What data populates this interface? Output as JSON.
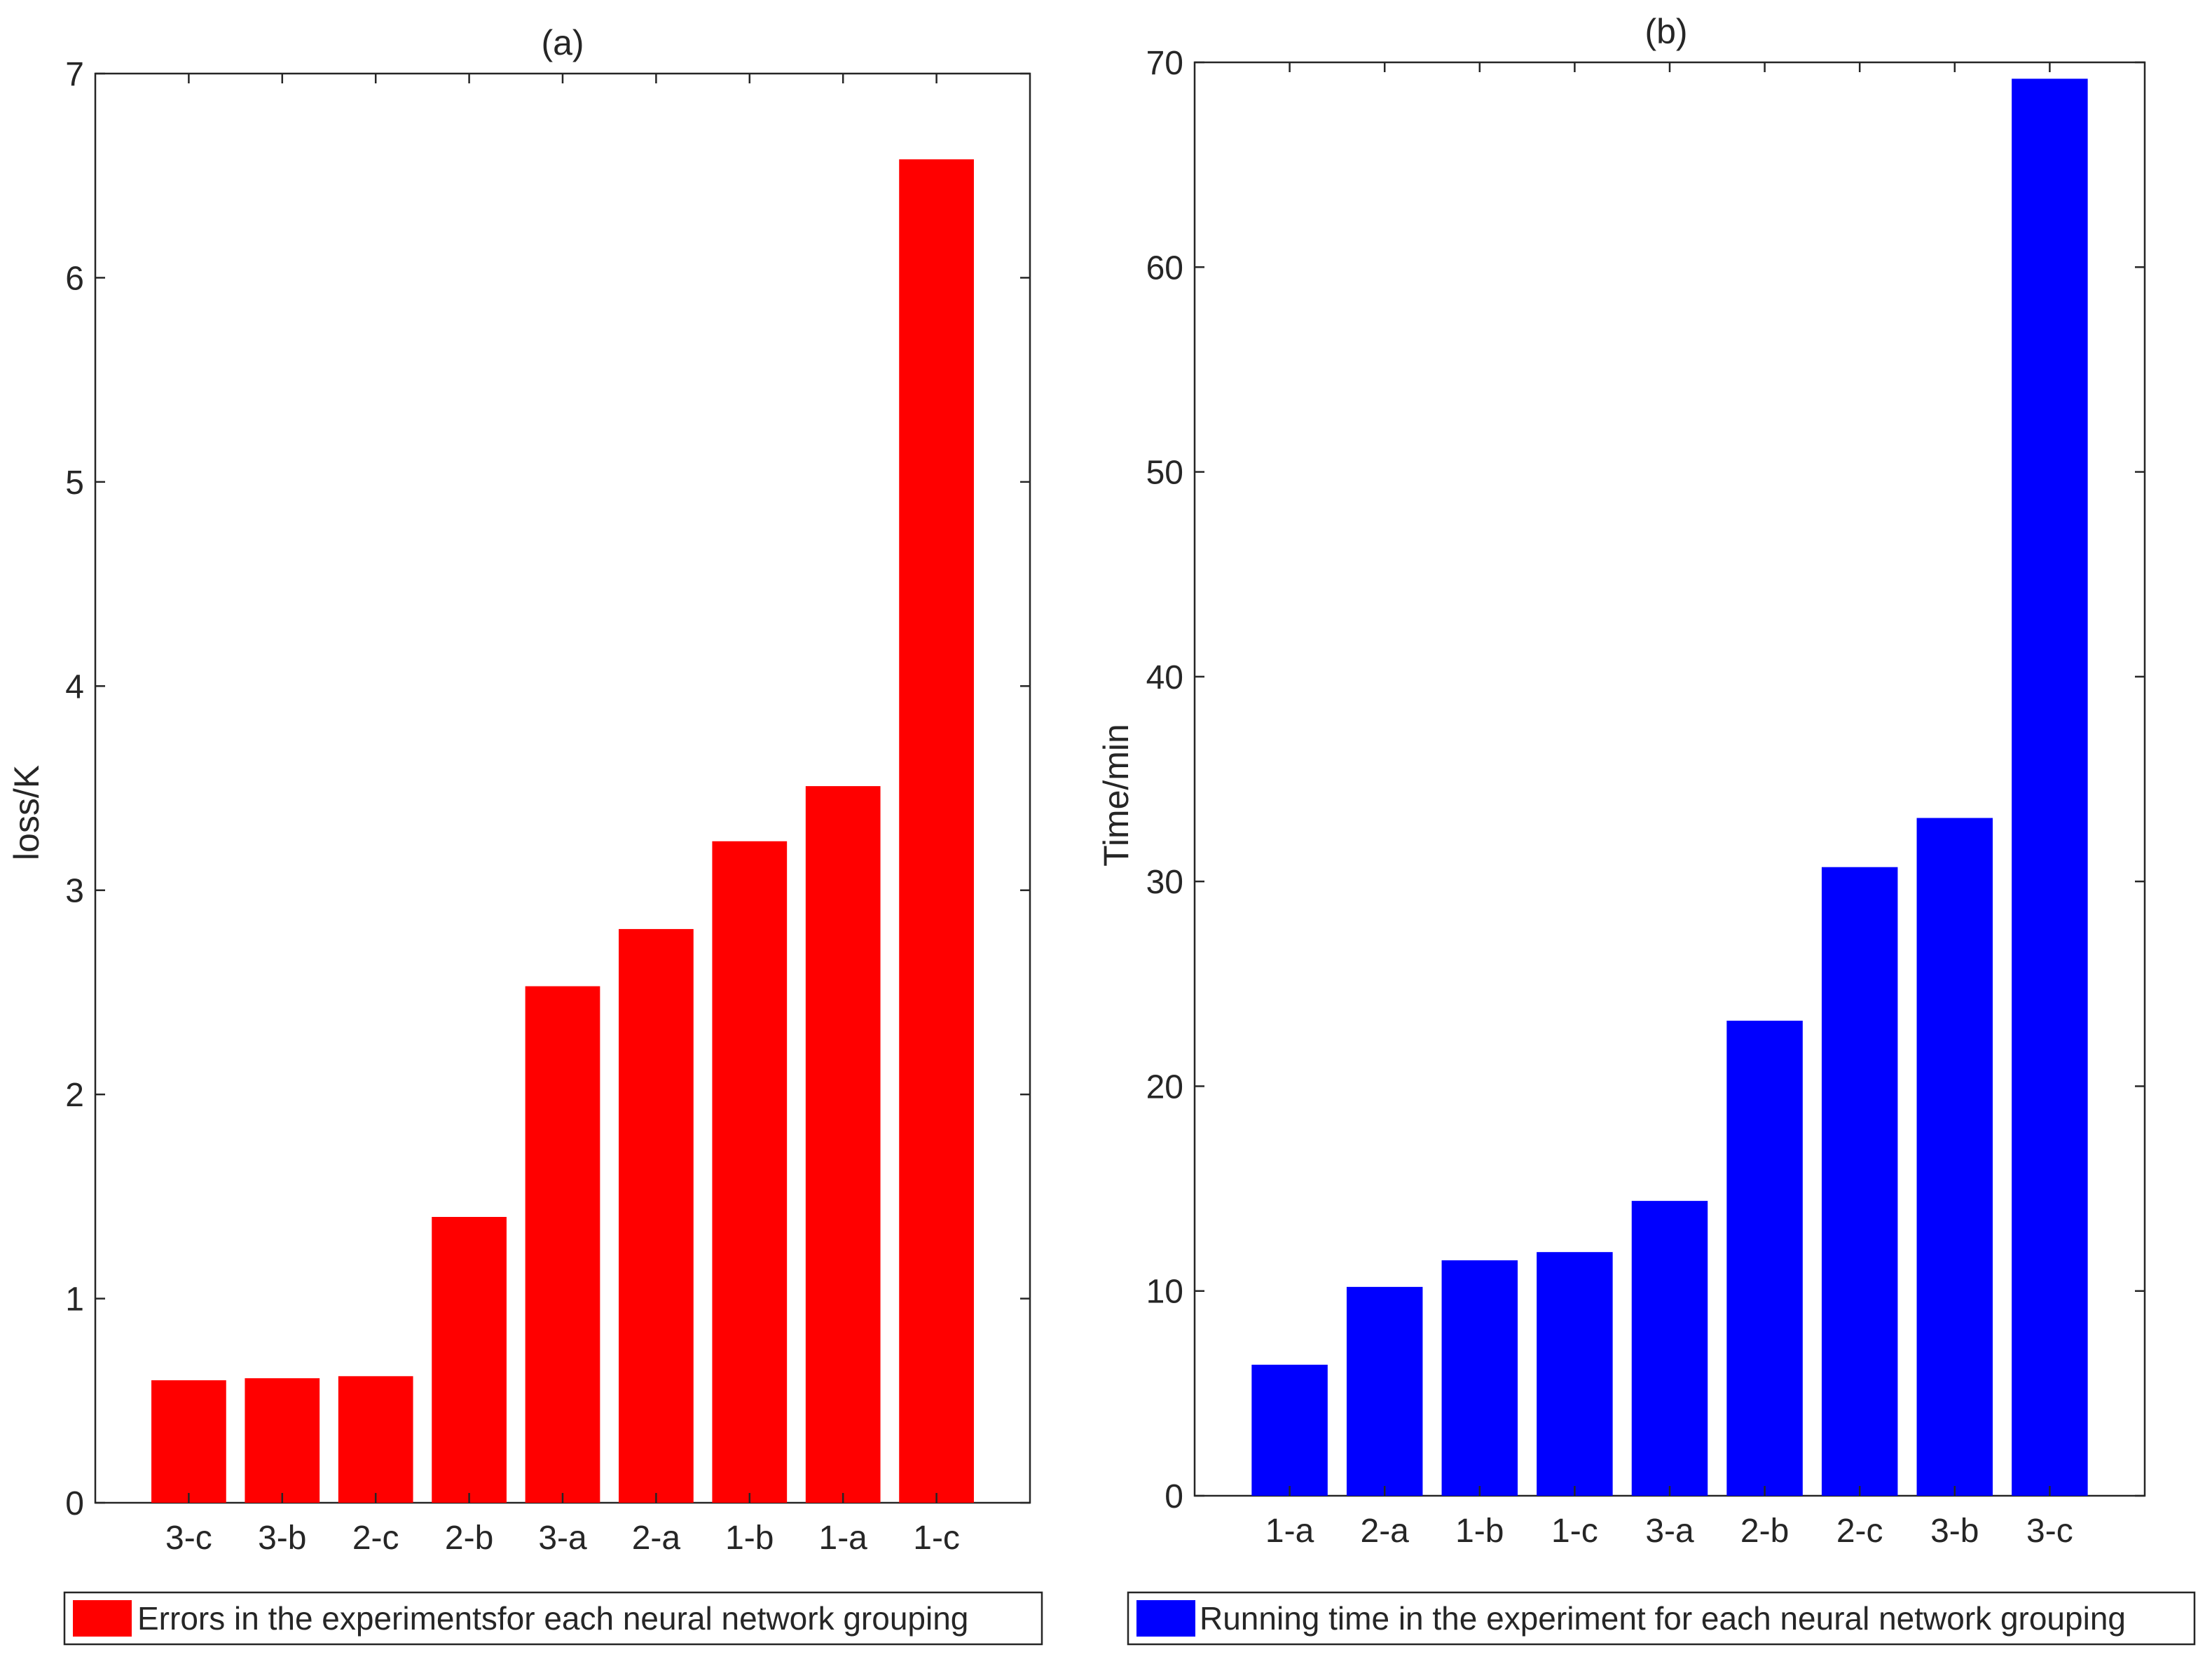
{
  "chart_data": [
    {
      "type": "bar",
      "title": "(a)",
      "xlabel": "",
      "ylabel": "loss/K",
      "categories": [
        "3-c",
        "3-b",
        "2-c",
        "2-b",
        "3-a",
        "2-a",
        "1-b",
        "1-a",
        "1-c"
      ],
      "values": [
        0.6,
        0.61,
        0.62,
        1.4,
        2.53,
        2.81,
        3.24,
        3.51,
        6.58
      ],
      "ylim": [
        0,
        7
      ],
      "yticks": [
        "0",
        "1",
        "2",
        "3",
        "4",
        "5",
        "6",
        "7"
      ],
      "color": "#ff0000",
      "grid": false,
      "legend": {
        "position": "bottom",
        "label": "Errors in the experimentsfor each neural network grouping"
      }
    },
    {
      "type": "bar",
      "title": "(b)",
      "xlabel": "",
      "ylabel": "Time/min",
      "categories": [
        "1-a",
        "2-a",
        "1-b",
        "1-c",
        "3-a",
        "2-b",
        "2-c",
        "3-b",
        "3-c"
      ],
      "values": [
        6.4,
        10.2,
        11.5,
        11.9,
        14.4,
        23.2,
        30.7,
        33.1,
        69.2
      ],
      "ylim": [
        0,
        70
      ],
      "yticks": [
        "0",
        "10",
        "20",
        "30",
        "40",
        "50",
        "60",
        "70"
      ],
      "color": "#0000ff",
      "grid": false,
      "legend": {
        "position": "bottom",
        "label": "Running time in the experiment for each neural network grouping"
      }
    }
  ]
}
